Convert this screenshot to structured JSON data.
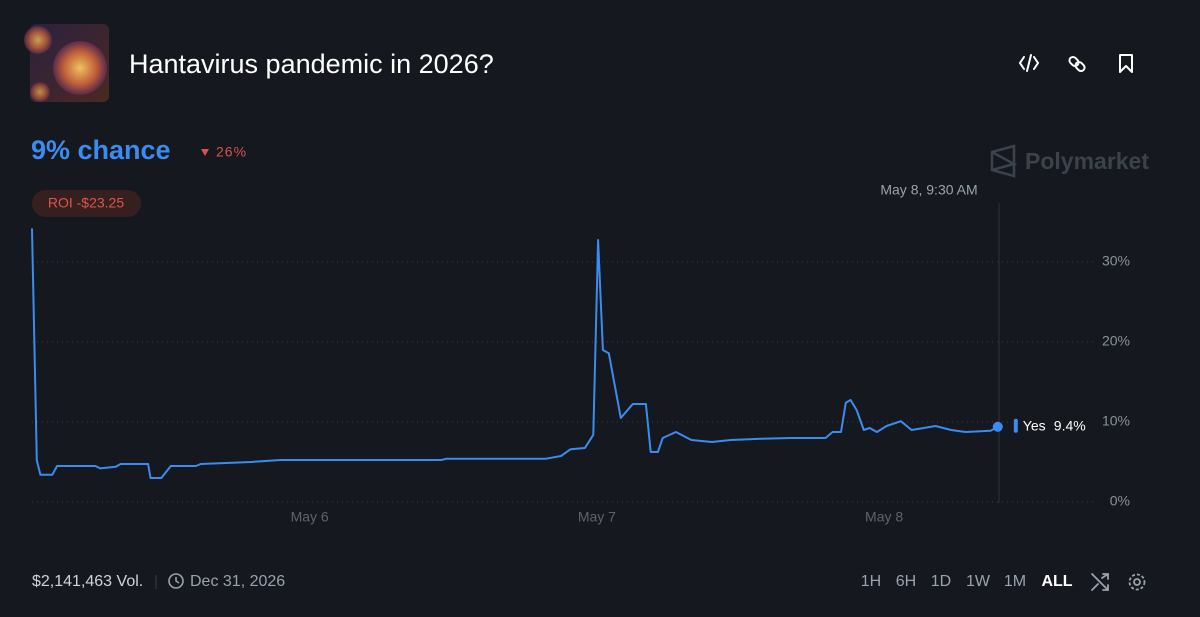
{
  "header": {
    "title": "Hantavirus pandemic in 2026?",
    "chance": "9% chance",
    "change": "26%",
    "roi": "ROI -$23.25",
    "brand": "Polymarket"
  },
  "chart_data": {
    "type": "line",
    "hover_label": "May 8, 9:30 AM",
    "x": [
      0.8,
      1.2,
      1.5,
      2.5,
      2.9,
      6.1,
      6.5,
      7.8,
      8.2,
      10.5,
      10.7,
      11.6,
      12.4,
      14.5,
      14.9,
      19.1,
      21.6,
      35.0,
      35.4,
      43.7,
      45.0,
      45.8,
      47.0,
      47.7,
      48.1,
      48.5,
      49.0,
      50.0,
      51.0,
      52.1,
      52.5,
      53.1,
      53.5,
      54.6,
      55.9,
      57.6,
      59.2,
      61.7,
      64.2,
      67.1,
      67.7,
      68.4,
      68.8,
      69.2,
      69.7,
      70.3,
      70.8,
      71.4,
      72.2,
      73.4,
      74.3,
      76.3,
      77.6,
      78.8,
      80.9,
      81.5
    ],
    "series": [
      {
        "name": "Yes",
        "color": "#3b8cf0",
        "values": [
          34.2,
          5.2,
          3.4,
          3.4,
          4.5,
          4.5,
          4.2,
          4.4,
          4.75,
          4.75,
          3.0,
          3.0,
          4.5,
          4.5,
          4.75,
          5.0,
          5.25,
          5.25,
          5.4,
          5.4,
          5.75,
          6.6,
          6.75,
          8.4,
          32.75,
          19.0,
          18.6,
          10.5,
          12.25,
          12.25,
          6.25,
          6.25,
          8.0,
          8.75,
          7.75,
          7.5,
          7.75,
          7.9,
          8.0,
          8.0,
          8.75,
          8.75,
          12.4,
          12.75,
          11.5,
          9.0,
          9.25,
          8.75,
          9.5,
          10.1,
          9.0,
          9.5,
          9.0,
          8.75,
          8.9,
          9.4
        ],
        "value_labels": [
          null,
          null,
          null,
          null,
          null,
          null,
          null,
          null,
          null,
          null,
          null,
          null,
          null,
          null,
          null,
          null,
          null,
          null,
          null,
          null,
          null,
          null,
          null,
          null,
          null,
          null,
          null,
          null,
          null,
          null,
          null,
          null,
          null,
          null,
          null,
          null,
          null,
          null,
          null,
          null,
          null,
          null,
          null,
          null,
          null,
          null,
          null,
          null,
          null,
          null,
          null,
          null,
          null,
          null,
          null,
          "9.4%"
        ]
      }
    ],
    "xlim": [
      0.8,
      81.6
    ],
    "xticks": [
      {
        "value": 24,
        "label": "May 6"
      },
      {
        "value": 48,
        "label": "May 7"
      },
      {
        "value": 72,
        "label": "May 8"
      }
    ],
    "ylim": [
      0,
      35
    ],
    "yticks": [
      {
        "value": 0,
        "label": "0%"
      },
      {
        "value": 10,
        "label": "10%"
      },
      {
        "value": 20,
        "label": "20%"
      },
      {
        "value": 30,
        "label": "30%"
      }
    ],
    "grid": true
  },
  "footer": {
    "volume": "$2,141,463 Vol.",
    "end_date": "Dec 31, 2026",
    "ranges": [
      "1H",
      "6H",
      "1D",
      "1W",
      "1M",
      "ALL"
    ]
  }
}
